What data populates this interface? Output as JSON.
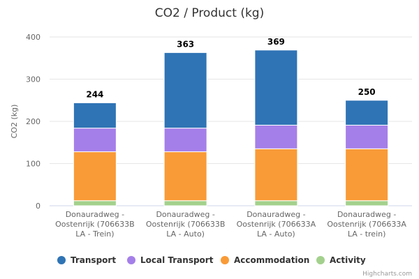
{
  "chart_data": {
    "type": "bar",
    "stacked": true,
    "title": "CO2 / Product (kg)",
    "ylabel": "CO2 (kg)",
    "xlabel": "",
    "ylim": [
      0,
      400
    ],
    "yticks": [
      0,
      100,
      200,
      300,
      400
    ],
    "grid": true,
    "legend_position": "bottom",
    "categories": [
      [
        "Donauradweg -",
        "Oostenrijk (706633B",
        "LA - Trein)"
      ],
      [
        "Donauradweg -",
        "Oostenrijk (706633B",
        "LA - Auto)"
      ],
      [
        "Donauradweg -",
        "Oostenrijk (706633A",
        "LA - Auto)"
      ],
      [
        "Donauradweg -",
        "Oostenrijk (706633A",
        "LA - trein)"
      ]
    ],
    "totals": [
      "244",
      "363",
      "369",
      "250"
    ],
    "series": [
      {
        "name": "Activity",
        "color": "#a3d18d",
        "values": [
          12,
          12,
          12,
          12
        ]
      },
      {
        "name": "Accommodation",
        "color": "#f99b37",
        "values": [
          116,
          116,
          123,
          123
        ]
      },
      {
        "name": "Local Transport",
        "color": "#a57fe9",
        "values": [
          56,
          56,
          56,
          56
        ]
      },
      {
        "name": "Transport",
        "color": "#2f74b5",
        "values": [
          60,
          179,
          178,
          59
        ]
      }
    ],
    "legend_order": [
      "Transport",
      "Local Transport",
      "Accommodation",
      "Activity"
    ],
    "credits": "Highcharts.com"
  }
}
